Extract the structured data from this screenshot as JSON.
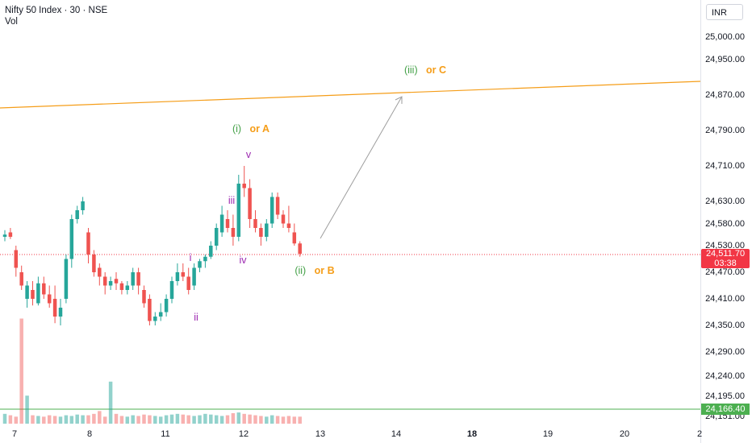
{
  "chart_data": {
    "type": "candlestick",
    "title": "Nifty 50 Index · 30 · NSE",
    "volume_label": "Vol",
    "currency": "INR",
    "y_ticks": [
      "25,000.00",
      "24,950.00",
      "24,870.00",
      "24,790.00",
      "24,710.00",
      "24,630.00",
      "24,580.00",
      "24,530.00",
      "24,470.00",
      "24,410.00",
      "24,350.00",
      "24,290.00",
      "24,240.00",
      "24,195.00",
      "24,151.00"
    ],
    "x_ticks": [
      {
        "label": "7",
        "bold": false
      },
      {
        "label": "8",
        "bold": false
      },
      {
        "label": "11",
        "bold": false
      },
      {
        "label": "12",
        "bold": false
      },
      {
        "label": "13",
        "bold": false
      },
      {
        "label": "14",
        "bold": false
      },
      {
        "label": "18",
        "bold": true
      },
      {
        "label": "19",
        "bold": false
      },
      {
        "label": "20",
        "bold": false
      },
      {
        "label": "2",
        "bold": false
      }
    ],
    "last_price": "24,511.70",
    "countdown": "03:38",
    "low_marker": "24,166.40",
    "candles": [
      [
        24550,
        24565,
        24540,
        24555
      ],
      [
        24560,
        24570,
        24545,
        24550
      ],
      [
        24520,
        24530,
        24460,
        24480
      ],
      [
        24470,
        24485,
        24430,
        24440
      ],
      [
        24410,
        24450,
        24390,
        24440
      ],
      [
        24430,
        24450,
        24395,
        24410
      ],
      [
        24400,
        24460,
        24395,
        24445
      ],
      [
        24445,
        24460,
        24410,
        24420
      ],
      [
        24420,
        24440,
        24390,
        24400
      ],
      [
        24410,
        24440,
        24355,
        24370
      ],
      [
        24370,
        24410,
        24350,
        24390
      ],
      [
        24410,
        24510,
        24400,
        24500
      ],
      [
        24500,
        24600,
        24480,
        24590
      ],
      [
        24590,
        24620,
        24580,
        24610
      ],
      [
        24610,
        24640,
        24600,
        24630
      ],
      [
        24560,
        24570,
        24490,
        24510
      ],
      [
        24510,
        24520,
        24460,
        24470
      ],
      [
        24480,
        24490,
        24440,
        24460
      ],
      [
        24460,
        24470,
        24420,
        24440
      ],
      [
        24440,
        24460,
        24430,
        24450
      ],
      [
        24455,
        24470,
        24430,
        24445
      ],
      [
        24445,
        24450,
        24420,
        24430
      ],
      [
        24430,
        24450,
        24420,
        24440
      ],
      [
        24440,
        24480,
        24430,
        24470
      ],
      [
        24470,
        24480,
        24420,
        24440
      ],
      [
        24430,
        24440,
        24390,
        24400
      ],
      [
        24410,
        24420,
        24350,
        24360
      ],
      [
        24360,
        24380,
        24350,
        24370
      ],
      [
        24370,
        24400,
        24360,
        24380
      ],
      [
        24380,
        24420,
        24370,
        24410
      ],
      [
        24410,
        24460,
        24400,
        24450
      ],
      [
        24450,
        24490,
        24440,
        24470
      ],
      [
        24470,
        24490,
        24450,
        24460
      ],
      [
        24460,
        24480,
        24420,
        24430
      ],
      [
        24440,
        24490,
        24430,
        24480
      ],
      [
        24480,
        24500,
        24470,
        24495
      ],
      [
        24495,
        24510,
        24480,
        24505
      ],
      [
        24505,
        24540,
        24500,
        24530
      ],
      [
        24530,
        24580,
        24520,
        24570
      ],
      [
        24560,
        24620,
        24550,
        24600
      ],
      [
        24590,
        24610,
        24560,
        24570
      ],
      [
        24570,
        24600,
        24530,
        24550
      ],
      [
        24550,
        24690,
        24540,
        24670
      ],
      [
        24670,
        24710,
        24640,
        24660
      ],
      [
        24660,
        24680,
        24570,
        24590
      ],
      [
        24590,
        24610,
        24560,
        24570
      ],
      [
        24570,
        24580,
        24530,
        24550
      ],
      [
        24550,
        24590,
        24540,
        24580
      ],
      [
        24580,
        24650,
        24570,
        24640
      ],
      [
        24640,
        24650,
        24590,
        24600
      ],
      [
        24600,
        24610,
        24570,
        24580
      ],
      [
        24580,
        24620,
        24560,
        24570
      ],
      [
        24560,
        24580,
        24530,
        24535
      ],
      [
        24535,
        24540,
        24505,
        24511.7
      ]
    ],
    "volumes": [
      14,
      12,
      10,
      150,
      40,
      12,
      11,
      10,
      12,
      11,
      10,
      12,
      11,
      13,
      12,
      12,
      14,
      18,
      10,
      60,
      14,
      11,
      10,
      12,
      11,
      13,
      12,
      11,
      10,
      12,
      13,
      14,
      13,
      12,
      11,
      12,
      14,
      13,
      12,
      11,
      12,
      15,
      16,
      14,
      13,
      12,
      11,
      10,
      12,
      11,
      10,
      11,
      10,
      10
    ]
  },
  "annotations": {
    "wave_iii_or_c": {
      "green": "(iii)",
      "orange": "or C"
    },
    "wave_i_or_a": {
      "green": "(i)",
      "orange": "or A"
    },
    "wave_ii_or_b": {
      "green": "(ii)",
      "orange": "or B"
    },
    "sub_waves": [
      "i",
      "ii",
      "iii",
      "iv",
      "v"
    ]
  },
  "colors": {
    "up": "#26a69a",
    "down": "#ef5350",
    "trendline": "#f59d18",
    "arrow": "#9e9e9e",
    "price_line": "#f23645",
    "low_line": "#4caf50"
  }
}
